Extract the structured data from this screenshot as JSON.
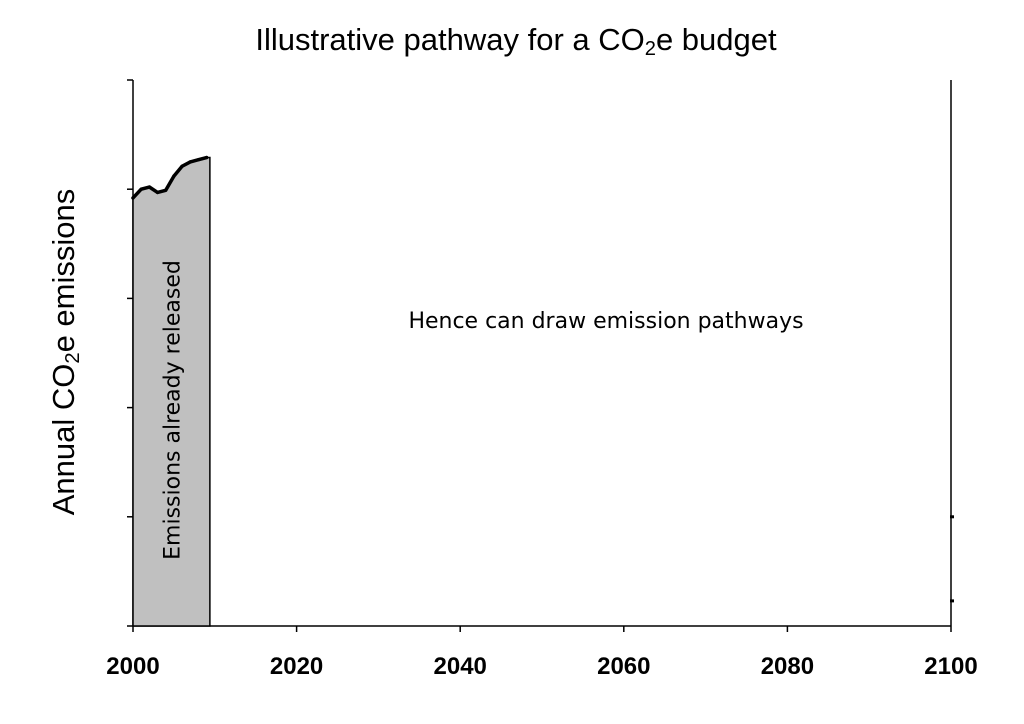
{
  "chart_data": {
    "type": "area",
    "title_main": "Illustrative pathway for a CO",
    "title_sub": "2",
    "title_tail": "e budget",
    "ylabel_main": "Annual CO",
    "ylabel_sub": "2",
    "ylabel_tail": "e emissions",
    "xlim": [
      2000,
      2100
    ],
    "ylim": [
      0,
      5
    ],
    "x_ticks": [
      2000,
      2020,
      2040,
      2060,
      2080,
      2100
    ],
    "x_tick_labels": [
      "2000",
      "2020",
      "2040",
      "2060",
      "2080",
      "2100"
    ],
    "y_tick_count": 5,
    "grid": false,
    "series": [
      {
        "x": [
          2000,
          2001,
          2002,
          2003,
          2004,
          2005,
          2006,
          2007,
          2008,
          2009
        ],
        "y": [
          3.92,
          4.0,
          4.02,
          3.97,
          3.99,
          4.12,
          4.21,
          4.25,
          4.27,
          4.29
        ]
      }
    ],
    "shaded_region": {
      "x_start": 2000,
      "x_end": 2009.4,
      "label": "Emissions already released",
      "color": "#c0c0c0"
    },
    "annotation": "Hence can draw emission pathways",
    "right_axis_marks": [
      1.0,
      0.23
    ]
  }
}
